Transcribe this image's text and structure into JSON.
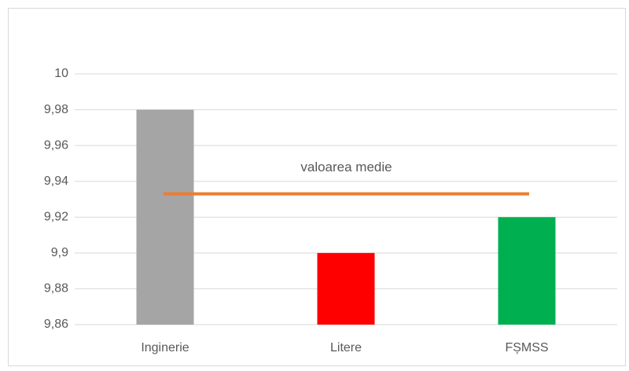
{
  "chart_data": {
    "type": "bar",
    "categories": [
      "Inginerie",
      "Litere",
      "FȘMSS"
    ],
    "values": [
      9.98,
      9.9,
      9.92
    ],
    "colors": [
      "#a5a5a5",
      "#ff0000",
      "#00b050"
    ],
    "ylim": [
      9.86,
      10
    ],
    "yticks": [
      {
        "value": 9.86,
        "label": "9,86"
      },
      {
        "value": 9.88,
        "label": "9,88"
      },
      {
        "value": 9.9,
        "label": "9,9"
      },
      {
        "value": 9.92,
        "label": "9,92"
      },
      {
        "value": 9.94,
        "label": "9,94"
      },
      {
        "value": 9.96,
        "label": "9,96"
      },
      {
        "value": 9.98,
        "label": "9,98"
      },
      10
    ],
    "grid": true,
    "mean_line": {
      "label": "valoarea medie",
      "value": 9.933,
      "color": "#ed7d31"
    }
  }
}
